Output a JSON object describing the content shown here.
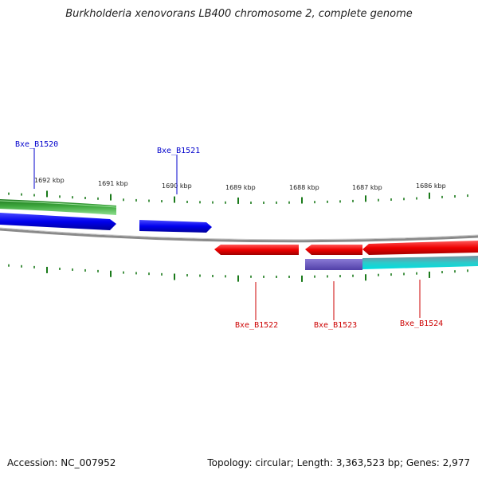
{
  "title": "Burkholderia xenovorans LB400 chromosome 2, complete genome",
  "footer": {
    "accession": "Accession: NC_007952",
    "summary": "Topology: circular; Length: 3,363,523 bp; Genes: 2,977"
  },
  "colors": {
    "forward_label": "#0000cc",
    "reverse_label": "#cc0000",
    "tick": "#1a7a1a",
    "backbone": "#888888"
  },
  "scale": {
    "labels": [
      "1692 kbp",
      "1691 kbp",
      "1690 kbp",
      "1689 kbp",
      "1688 kbp",
      "1687 kbp",
      "1686 kbp"
    ]
  },
  "genes": [
    {
      "name": "Bxe_B1520",
      "strand": "+"
    },
    {
      "name": "Bxe_B1521",
      "strand": "+"
    },
    {
      "name": "Bxe_B1522",
      "strand": "-"
    },
    {
      "name": "Bxe_B1523",
      "strand": "-"
    },
    {
      "name": "Bxe_B1524",
      "strand": "-"
    }
  ]
}
